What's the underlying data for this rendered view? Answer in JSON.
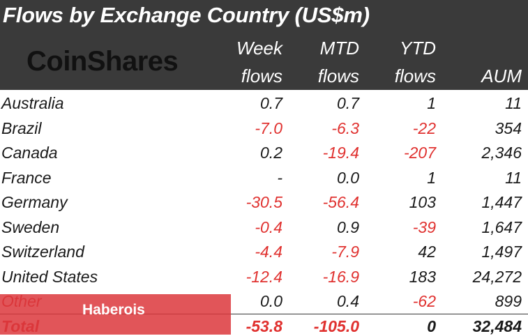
{
  "chart_data": {
    "type": "table",
    "title": "Flows by Exchange Country (US$m)",
    "columns": [
      {
        "key": "week",
        "line1": "Week",
        "line2": "flows"
      },
      {
        "key": "mtd",
        "line1": "MTD",
        "line2": "flows"
      },
      {
        "key": "ytd",
        "line1": "YTD",
        "line2": "flows"
      },
      {
        "key": "aum",
        "line1": "",
        "line2": "AUM"
      }
    ],
    "rows": [
      {
        "country": "Australia",
        "week": "0.7",
        "mtd": "0.7",
        "ytd": "1",
        "aum": "11"
      },
      {
        "country": "Brazil",
        "week": "-7.0",
        "mtd": "-6.3",
        "ytd": "-22",
        "aum": "354"
      },
      {
        "country": "Canada",
        "week": "0.2",
        "mtd": "-19.4",
        "ytd": "-207",
        "aum": "2,346"
      },
      {
        "country": "France",
        "week": "-",
        "mtd": "0.0",
        "ytd": "1",
        "aum": "11"
      },
      {
        "country": "Germany",
        "week": "-30.5",
        "mtd": "-56.4",
        "ytd": "103",
        "aum": "1,447"
      },
      {
        "country": "Sweden",
        "week": "-0.4",
        "mtd": "0.9",
        "ytd": "-39",
        "aum": "1,647"
      },
      {
        "country": "Switzerland",
        "week": "-4.4",
        "mtd": "-7.9",
        "ytd": "42",
        "aum": "1,497"
      },
      {
        "country": "United States",
        "week": "-12.4",
        "mtd": "-16.9",
        "ytd": "183",
        "aum": "24,272"
      },
      {
        "country": "Other",
        "week": "0.0",
        "mtd": "0.4",
        "ytd": "-62",
        "aum": "899"
      }
    ],
    "total": {
      "country": "Total",
      "week": "-53.8",
      "mtd": "-105.0",
      "ytd": "0",
      "aum": "32,484"
    }
  },
  "brand": {
    "logo_text": "CoinShares"
  },
  "watermark": {
    "text": "Haberois"
  },
  "colors": {
    "header_bg": "#3a3a3a",
    "negative": "#e0312f",
    "positive": "#1a1a1a",
    "watermark": "#dc373c"
  }
}
